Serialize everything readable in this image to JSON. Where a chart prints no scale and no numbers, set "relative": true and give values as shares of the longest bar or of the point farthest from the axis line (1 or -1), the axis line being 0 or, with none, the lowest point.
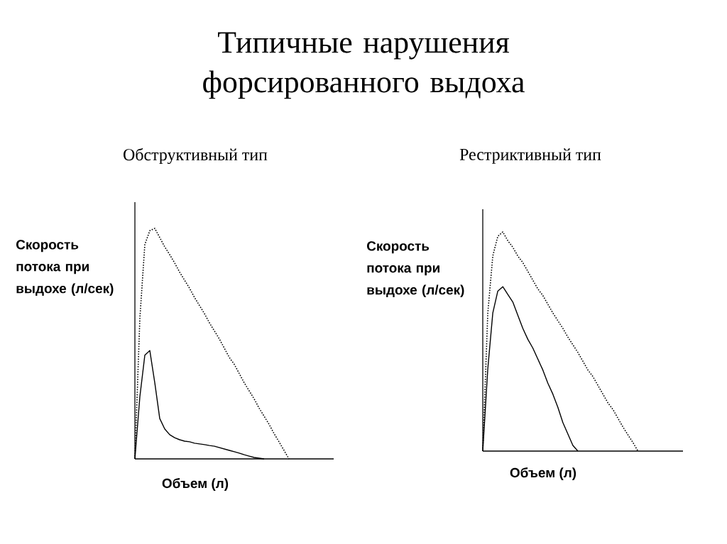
{
  "chart_data": [
    {
      "type": "line",
      "title": "Типичные нарушения форсированного выдоха",
      "subtitle": "Обструктивный тип",
      "xlabel": "Объем (л)",
      "ylabel": "Скорость потока при выдохе (л/сек)",
      "relative": true,
      "categories": [
        null,
        null,
        null,
        null,
        null,
        null,
        null,
        null,
        null,
        null,
        null,
        null,
        null,
        null,
        null,
        null,
        null,
        null,
        null,
        null,
        null,
        null,
        null,
        null,
        null,
        null,
        null,
        null,
        null,
        null,
        null,
        null,
        null,
        null,
        null,
        null,
        null,
        null,
        null,
        null,
        null
      ],
      "series": [
        {
          "color": "#000000",
          "line_style": "dotted",
          "values": [
            0,
            0.61,
            0.93,
            0.99,
            1,
            0.96,
            0.92,
            0.886,
            0.85,
            0.81,
            0.775,
            0.74,
            0.7,
            0.665,
            0.63,
            0.59,
            0.555,
            0.52,
            0.48,
            0.44,
            0.41,
            0.37,
            0.33,
            0.295,
            0.26,
            0.22,
            0.185,
            0.15,
            0.11,
            0.074,
            0.037,
            0,
            null,
            null,
            null,
            null,
            null,
            null,
            null,
            null,
            null
          ]
        },
        {
          "color": "#000000",
          "line_style": "solid",
          "values": [
            0,
            0.27,
            0.45,
            0.47,
            0.33,
            0.175,
            0.13,
            0.105,
            0.092,
            0.083,
            0.077,
            0.074,
            0.068,
            0.065,
            0.062,
            0.058,
            0.055,
            0.049,
            0.043,
            0.037,
            0.031,
            0.025,
            0.018,
            0.012,
            0.006,
            0.003,
            0,
            null,
            null,
            null,
            null,
            null,
            null,
            null,
            null,
            null,
            null,
            null,
            null,
            null,
            null
          ]
        }
      ]
    },
    {
      "type": "line",
      "subtitle": "Рестриктивный тип",
      "xlabel": "Объем (л)",
      "ylabel": "Скорость потока при выдохе (л/сек)",
      "relative": true,
      "categories": [
        null,
        null,
        null,
        null,
        null,
        null,
        null,
        null,
        null,
        null,
        null,
        null,
        null,
        null,
        null,
        null,
        null,
        null,
        null,
        null,
        null,
        null,
        null,
        null,
        null,
        null,
        null,
        null,
        null,
        null,
        null,
        null,
        null,
        null,
        null,
        null,
        null,
        null,
        null,
        null,
        null
      ],
      "series": [
        {
          "color": "#000000",
          "line_style": "dotted",
          "values": [
            0,
            0.63,
            0.89,
            0.98,
            1,
            0.96,
            0.93,
            0.89,
            0.86,
            0.82,
            0.78,
            0.74,
            0.71,
            0.67,
            0.63,
            0.595,
            0.56,
            0.52,
            0.485,
            0.45,
            0.41,
            0.37,
            0.34,
            0.3,
            0.26,
            0.22,
            0.19,
            0.15,
            0.11,
            0.074,
            0.039,
            0,
            null,
            null,
            null,
            null,
            null,
            null,
            null,
            null,
            null
          ]
        },
        {
          "color": "#000000",
          "line_style": "solid",
          "values": [
            0,
            0.375,
            0.63,
            0.73,
            0.75,
            0.715,
            0.68,
            0.62,
            0.56,
            0.51,
            0.47,
            0.42,
            0.37,
            0.31,
            0.26,
            0.2,
            0.13,
            0.078,
            0.026,
            0,
            null,
            null,
            null,
            null,
            null,
            null,
            null,
            null,
            null,
            null,
            null,
            null,
            null,
            null,
            null,
            null,
            null,
            null,
            null,
            null,
            null
          ]
        }
      ]
    }
  ]
}
